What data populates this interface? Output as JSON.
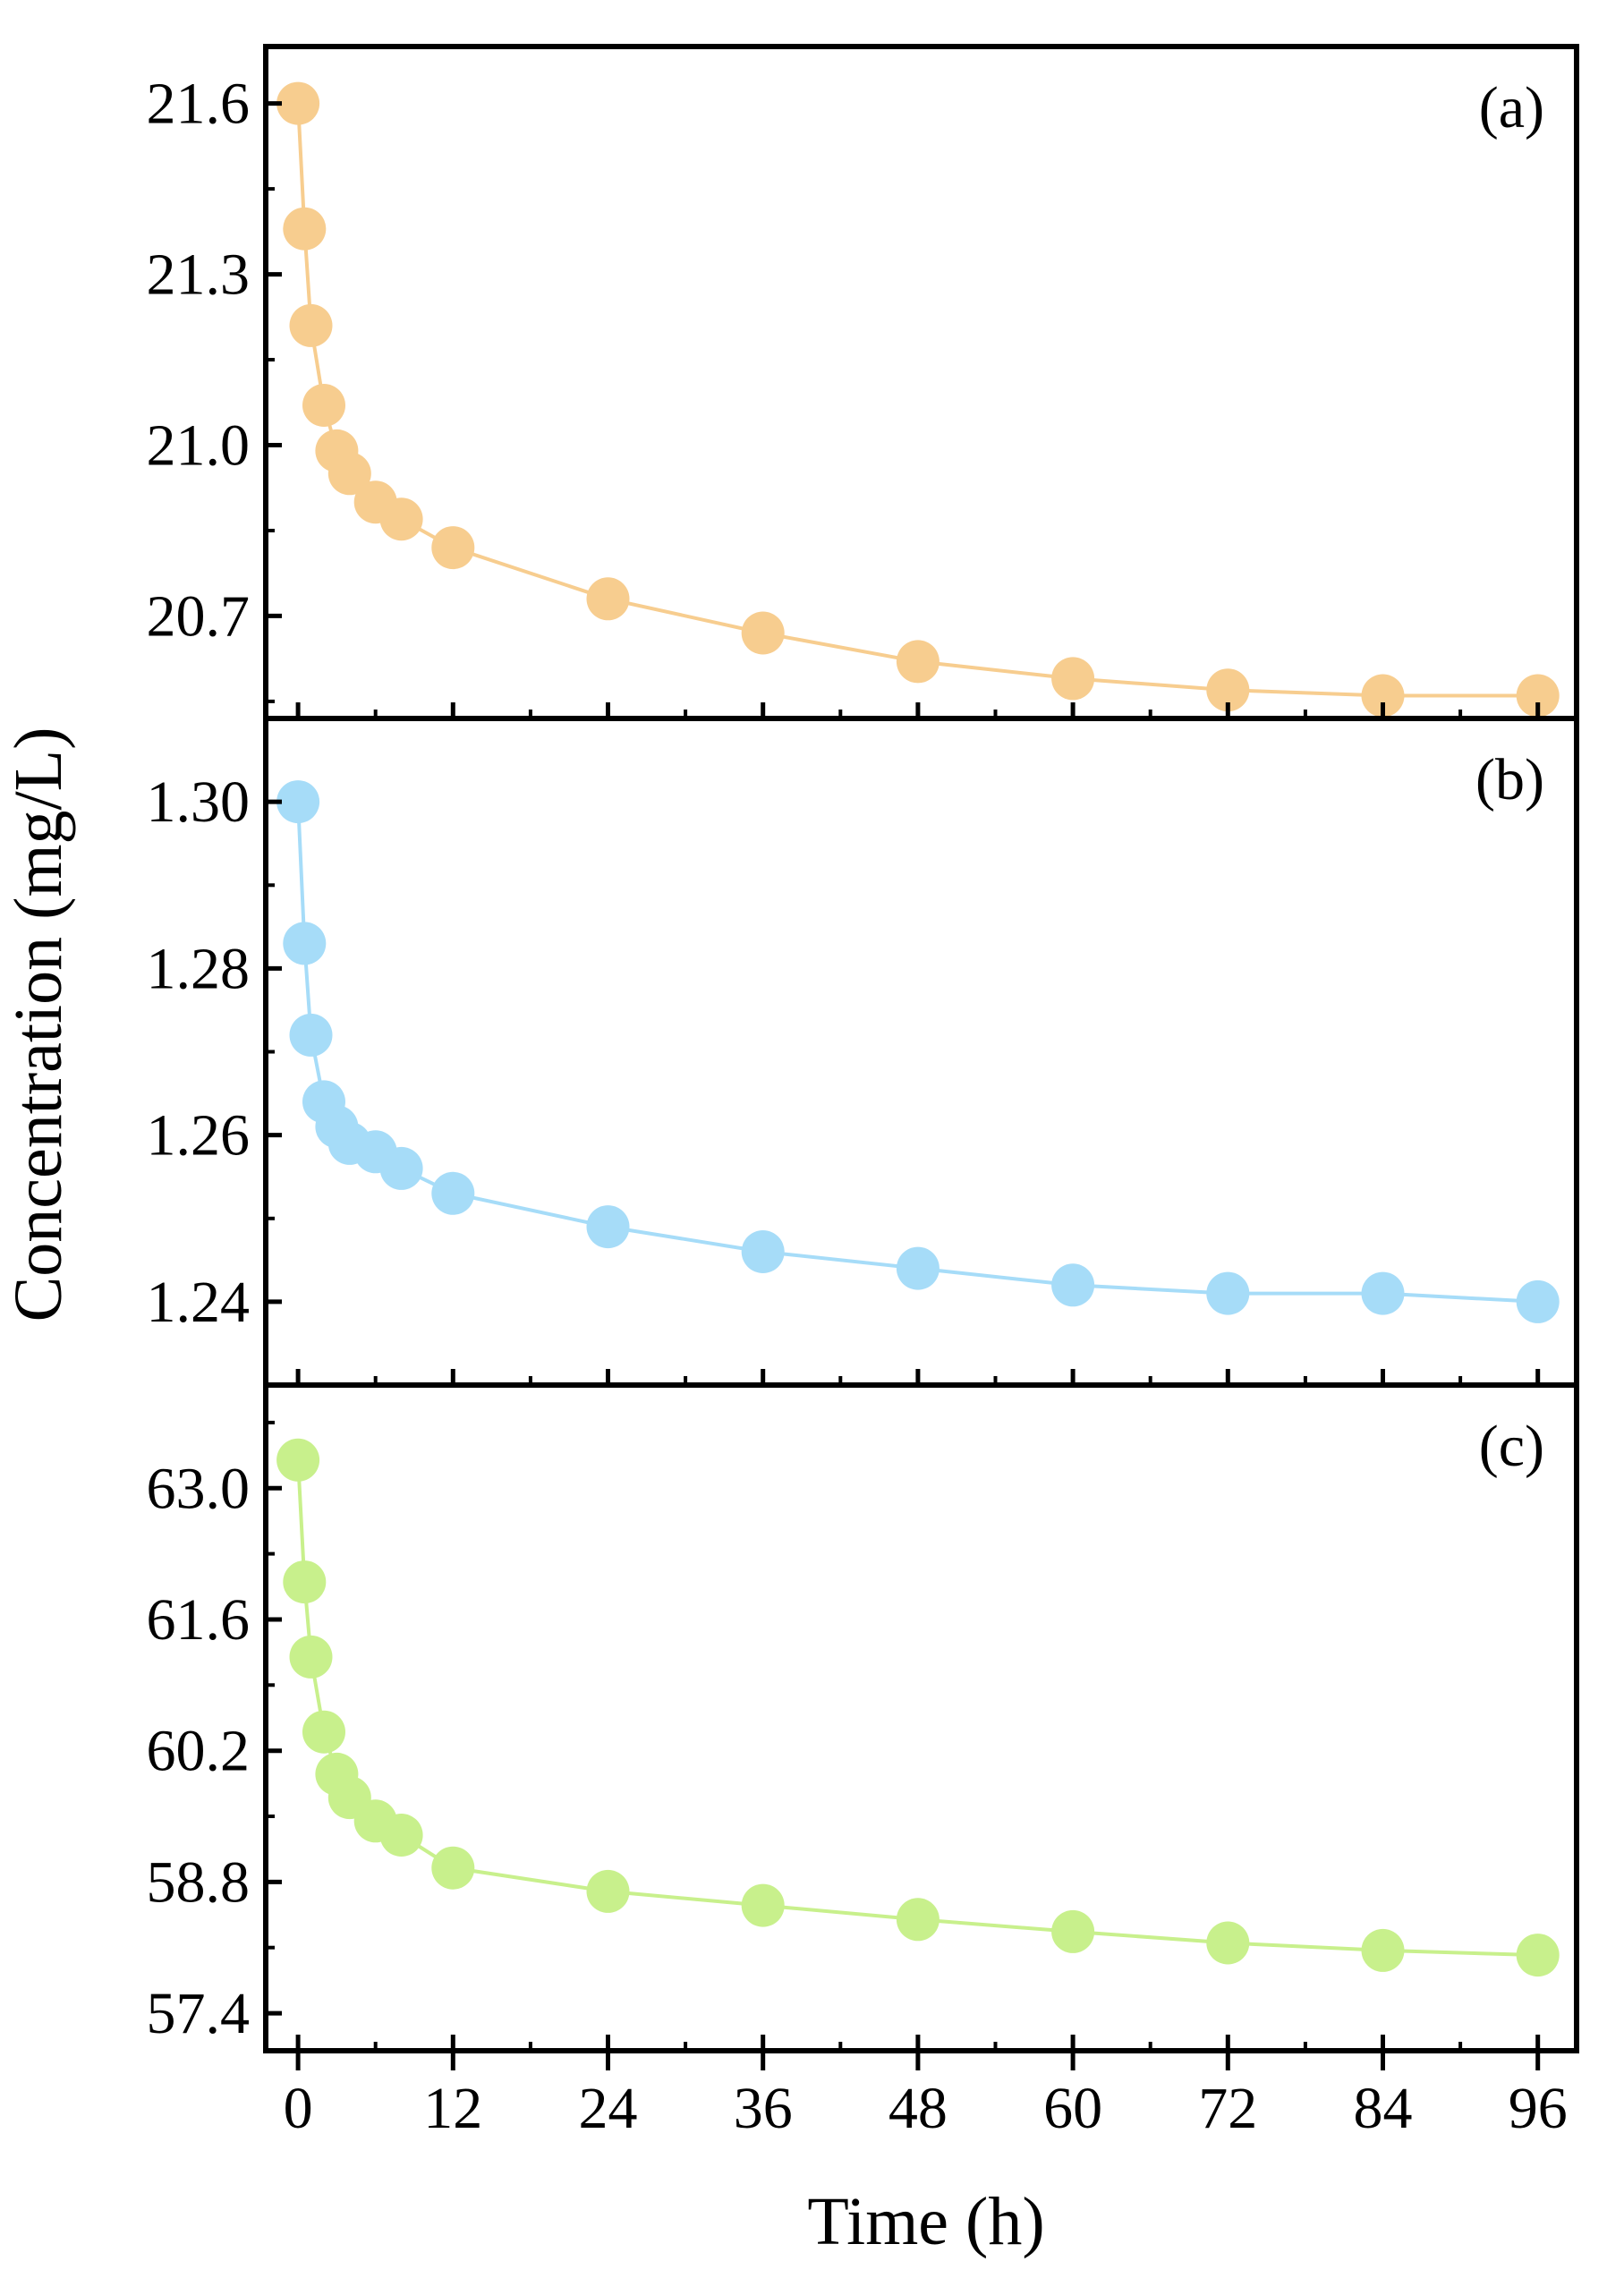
{
  "chart_data": {
    "type": "scatter",
    "layout": "stacked-panels",
    "xlabel": "Time (h)",
    "ylabel": "Concentration (mg/L)",
    "xlim": [
      -2.5,
      99
    ],
    "xticks": [
      0,
      12,
      24,
      36,
      48,
      60,
      72,
      84,
      96
    ],
    "xtick_labels": [
      "0",
      "12",
      "24",
      "36",
      "48",
      "60",
      "72",
      "84",
      "96"
    ],
    "x": [
      0,
      0.5,
      1,
      2,
      3,
      4,
      6,
      8,
      12,
      24,
      36,
      48,
      60,
      72,
      84,
      96
    ],
    "panels": [
      {
        "label": "(a)",
        "color": "#F7CD8F",
        "ylim": [
          20.52,
          21.7
        ],
        "yticks": [
          21.6,
          21.3,
          21.0,
          20.7
        ],
        "ytick_labels": [
          "21.6",
          "21.3",
          "21.0",
          "20.7"
        ],
        "values": [
          21.6,
          21.38,
          21.21,
          21.07,
          20.99,
          20.95,
          20.9,
          20.87,
          20.82,
          20.73,
          20.67,
          20.62,
          20.59,
          20.57,
          20.56,
          20.56
        ]
      },
      {
        "label": "(b)",
        "color": "#A6DCF8",
        "ylim": [
          1.23,
          1.31
        ],
        "yticks": [
          1.3,
          1.28,
          1.26,
          1.24
        ],
        "ytick_labels": [
          "1.30",
          "1.28",
          "1.26",
          "1.24"
        ],
        "values": [
          1.3,
          1.283,
          1.272,
          1.264,
          1.261,
          1.259,
          1.258,
          1.256,
          1.253,
          1.249,
          1.246,
          1.244,
          1.242,
          1.241,
          1.241,
          1.24
        ]
      },
      {
        "label": "(c)",
        "color": "#C8F08C",
        "ylim": [
          57.0,
          64.1
        ],
        "yticks": [
          63.0,
          61.6,
          60.2,
          58.8,
          57.4
        ],
        "ytick_labels": [
          "63.0",
          "61.6",
          "60.2",
          "58.8",
          "57.4"
        ],
        "values": [
          63.3,
          62.0,
          61.2,
          60.4,
          59.95,
          59.7,
          59.45,
          59.3,
          58.95,
          58.7,
          58.55,
          58.4,
          58.27,
          58.15,
          58.07,
          58.02
        ]
      }
    ]
  }
}
